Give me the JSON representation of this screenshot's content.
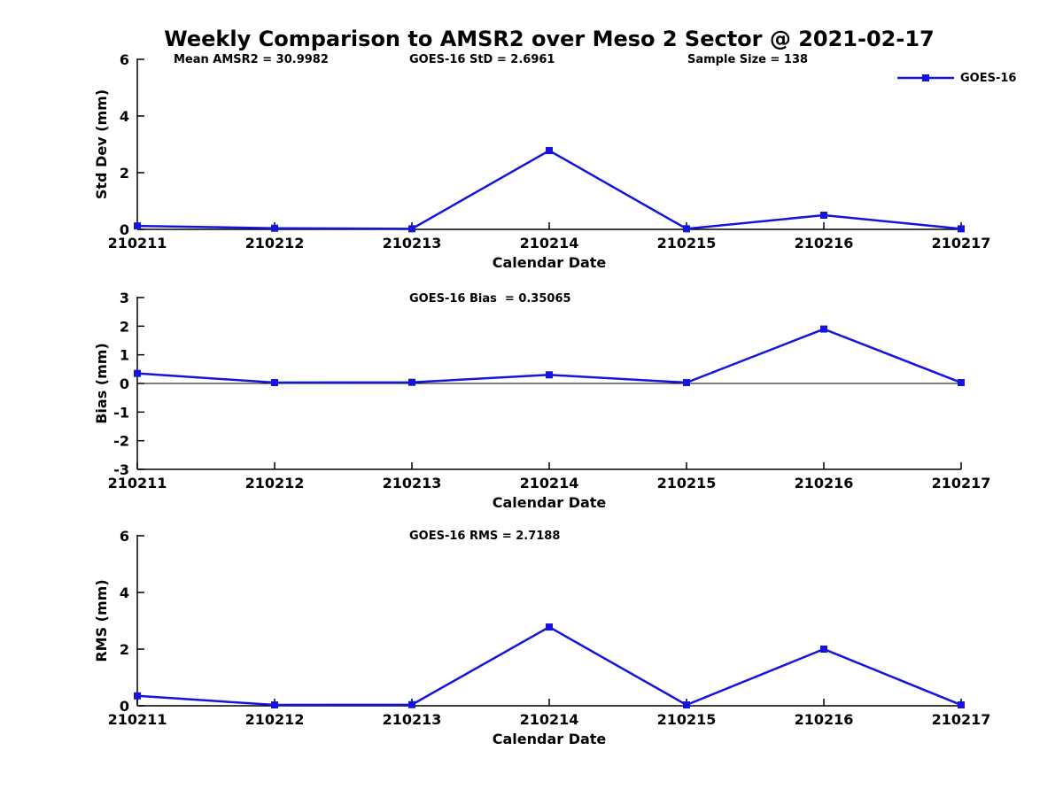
{
  "title": "Weekly Comparison to AMSR2 over Meso 2 Sector @ 2021-02-17",
  "legend": {
    "label": "GOES-16",
    "marker": "square"
  },
  "colors": {
    "line": "#1414dc",
    "axis": "#000000",
    "text": "#000000"
  },
  "chart_data": [
    {
      "type": "line",
      "name": "std-dev",
      "annotations": [
        "Mean AMSR2 = 30.9982",
        "GOES-16 StD = 2.6961",
        "Sample Size = 138"
      ],
      "categories": [
        "210211",
        "210212",
        "210213",
        "210214",
        "210215",
        "210216",
        "210217"
      ],
      "series": [
        {
          "name": "GOES-16",
          "values": [
            0.12,
            0.04,
            0.02,
            2.78,
            0.02,
            0.5,
            0.02
          ]
        }
      ],
      "xlabel": "Calendar Date",
      "ylabel": "Std Dev (mm)",
      "ylim": [
        0,
        6
      ],
      "yticks": [
        0,
        2,
        4,
        6
      ],
      "zero_line": false,
      "grid": false,
      "legend_position": "top-right"
    },
    {
      "type": "line",
      "name": "bias",
      "annotations": [
        "GOES-16 Bias  = 0.35065"
      ],
      "categories": [
        "210211",
        "210212",
        "210213",
        "210214",
        "210215",
        "210216",
        "210217"
      ],
      "series": [
        {
          "name": "GOES-16",
          "values": [
            0.35,
            0.03,
            0.04,
            0.3,
            0.03,
            1.9,
            0.03
          ]
        }
      ],
      "xlabel": "Calendar Date",
      "ylabel": "Bias (mm)",
      "ylim": [
        -3,
        3
      ],
      "yticks": [
        -3,
        -2,
        -1,
        0,
        1,
        2,
        3
      ],
      "zero_line": true,
      "grid": false
    },
    {
      "type": "line",
      "name": "rms",
      "annotations": [
        "GOES-16 RMS = 2.7188"
      ],
      "categories": [
        "210211",
        "210212",
        "210213",
        "210214",
        "210215",
        "210216",
        "210217"
      ],
      "series": [
        {
          "name": "GOES-16",
          "values": [
            0.35,
            0.03,
            0.04,
            2.78,
            0.03,
            2.0,
            0.03
          ]
        }
      ],
      "xlabel": "Calendar Date",
      "ylabel": "RMS (mm)",
      "ylim": [
        0,
        6
      ],
      "yticks": [
        0,
        2,
        4,
        6
      ],
      "zero_line": false,
      "grid": false
    }
  ]
}
